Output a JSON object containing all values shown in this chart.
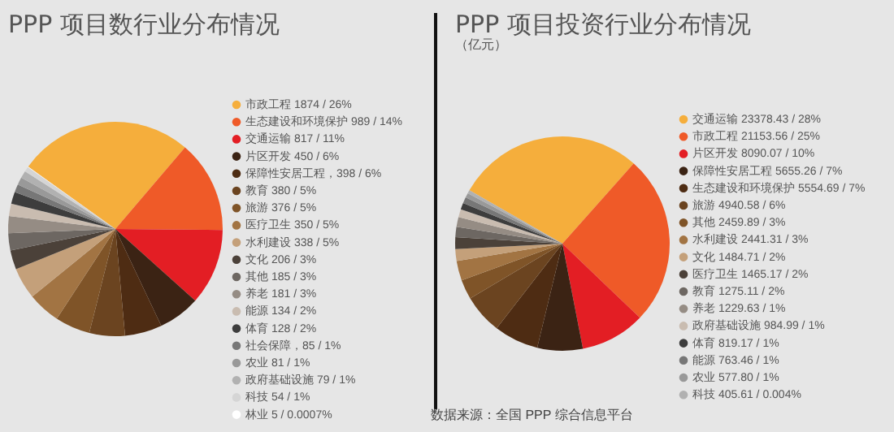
{
  "chart_data": [
    {
      "type": "pie",
      "title": "PPP 项目数行业分布情况",
      "legend": "right",
      "categories": [
        "市政工程",
        "生态建设和环境保护",
        "交通运输",
        "片区开发",
        "保障性安居工程",
        "教育",
        "旅游",
        "医疗卫生",
        "水利建设",
        "文化",
        "其他",
        "养老",
        "能源",
        "体育",
        "社会保障",
        "农业",
        "政府基础设施",
        "科技",
        "林业"
      ],
      "values": [
        1874,
        989,
        817,
        450,
        398,
        380,
        376,
        350,
        338,
        206,
        185,
        181,
        134,
        128,
        85,
        81,
        79,
        54,
        5
      ],
      "value_labels": [
        "1874 /  26%",
        "989 / 14%",
        "817 / 11%",
        "450 / 6%",
        "，398 / 6%",
        "380 / 5%",
        "376 / 5%",
        "350 / 5%",
        "338 / 5%",
        "206 / 3%",
        "185 / 3%",
        "181 / 3%",
        "134 / 2%",
        "128 / 2%",
        "，85 / 1%",
        "81 / 1%",
        "79 / 1%",
        "54 / 1%",
        "5 / 0.0007%"
      ],
      "colors": [
        "#f5ae3c",
        "#ef5a28",
        "#e31e24",
        "#3b2314",
        "#4e2c13",
        "#6b4420",
        "#7f5428",
        "#a27443",
        "#c4a07a",
        "#4b4139",
        "#6d6762",
        "#958c84",
        "#c9bcb0",
        "#3d3d3d",
        "#777777",
        "#999999",
        "#b1b1b1",
        "#d5d5d5",
        "#ffffff"
      ]
    },
    {
      "type": "pie",
      "title": "PPP 项目投资行业分布情况",
      "subtitle": "（亿元）",
      "legend": "right",
      "categories": [
        "交通运输",
        "市政工程",
        "片区开发",
        "保障性安居工程",
        "生态建设和环境保护",
        "旅游",
        "其他",
        "水利建设",
        "文化",
        "医疗卫生",
        "教育",
        "养老",
        "政府基础设施",
        "体育",
        "能源",
        "农业",
        "科技"
      ],
      "values": [
        23378.43,
        21153.56,
        8090.07,
        5655.26,
        5554.69,
        4940.58,
        2459.89,
        2441.31,
        1484.71,
        1465.17,
        1275.11,
        1229.63,
        984.99,
        819.17,
        763.46,
        577.8,
        405.61
      ],
      "value_labels": [
        "23378.43 / 28%",
        "21153.56 / 25%",
        "8090.07 / 10%",
        "5655.26 / 7%",
        "5554.69 / 7%",
        "4940.58 / 6%",
        "2459.89 / 3%",
        "2441.31 / 3%",
        "1484.71 / 2%",
        "1465.17 / 2%",
        "1275.11 / 2%",
        "1229.63 / 1%",
        "984.99  / 1%",
        "819.17 / 1%",
        "763.46 / 1%",
        "577.80 / 1%",
        "405.61 / 0.004%"
      ],
      "colors": [
        "#f5ae3c",
        "#ef5a28",
        "#e31e24",
        "#3b2314",
        "#4e2c13",
        "#6b4420",
        "#7f5428",
        "#a27443",
        "#c4a07a",
        "#4b4139",
        "#6d6762",
        "#958c84",
        "#c9bcb0",
        "#3d3d3d",
        "#777777",
        "#999999",
        "#b1b1b1"
      ],
      "annotations": [
        "数据来源：全国 PPP 综合信息平台"
      ]
    }
  ]
}
